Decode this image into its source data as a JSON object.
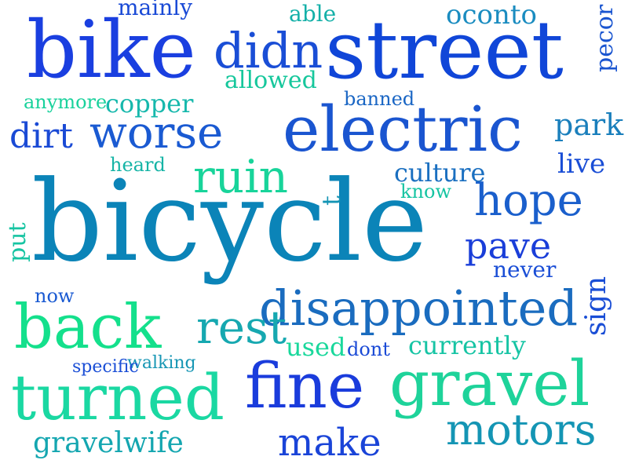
{
  "word_cloud": {
    "words": [
      {
        "text": "bicycle",
        "color": "#0b84b8"
      },
      {
        "text": "street",
        "color": "#1046d8"
      },
      {
        "text": "bike",
        "color": "#1a3fe0"
      },
      {
        "text": "electric",
        "color": "#1a55d0"
      },
      {
        "text": "gravel",
        "color": "#1ed39a"
      },
      {
        "text": "turned",
        "color": "#1ad8a2"
      },
      {
        "text": "fine",
        "color": "#1a3cdc"
      },
      {
        "text": "back",
        "color": "#14e08c"
      },
      {
        "text": "disappointed",
        "color": "#1a6cbf"
      },
      {
        "text": "motors",
        "color": "#1495b4"
      },
      {
        "text": "didn",
        "color": "#1a4ed6"
      },
      {
        "text": "worse",
        "color": "#1a5ad2"
      },
      {
        "text": "ruin",
        "color": "#18d49a"
      },
      {
        "text": "hope",
        "color": "#1a5fcc"
      },
      {
        "text": "make",
        "color": "#1a44d8"
      },
      {
        "text": "pave",
        "color": "#1a3ed9"
      },
      {
        "text": "dirt",
        "color": "#1a4ad5"
      },
      {
        "text": "gravelwife",
        "color": "#14a6b0"
      },
      {
        "text": "currently",
        "color": "#16c4a4"
      },
      {
        "text": "oconto",
        "color": "#1a8cc0"
      },
      {
        "text": "allowed",
        "color": "#16c79c"
      },
      {
        "text": "copper",
        "color": "#16b8ac"
      },
      {
        "text": "culture",
        "color": "#1a6fc0"
      },
      {
        "text": "park",
        "color": "#1a7fbc"
      },
      {
        "text": "live",
        "color": "#1a4ed6"
      },
      {
        "text": "used",
        "color": "#1ad89c"
      },
      {
        "text": "able",
        "color": "#14b0a8"
      },
      {
        "text": "mainly",
        "color": "#1a4ad6"
      },
      {
        "text": "anymore",
        "color": "#1ad29c"
      },
      {
        "text": "banned",
        "color": "#1a66c4"
      },
      {
        "text": "heard",
        "color": "#16b4a6"
      },
      {
        "text": "walking",
        "color": "#1696b4"
      },
      {
        "text": "specific",
        "color": "#1a4ed6"
      },
      {
        "text": "dont",
        "color": "#1a4ad6"
      },
      {
        "text": "never",
        "color": "#1a4ed6"
      },
      {
        "text": "now",
        "color": "#1a5ad2"
      },
      {
        "text": "know",
        "color": "#16c4a2"
      },
      {
        "text": "rest",
        "color": "#16a8b0"
      },
      {
        "text": "t",
        "color": "#1494b4"
      },
      {
        "text": "put",
        "color": "#16c4a2"
      },
      {
        "text": "sign",
        "color": "#1a4ed6"
      },
      {
        "text": "pecor",
        "color": "#1a55d0"
      }
    ]
  }
}
